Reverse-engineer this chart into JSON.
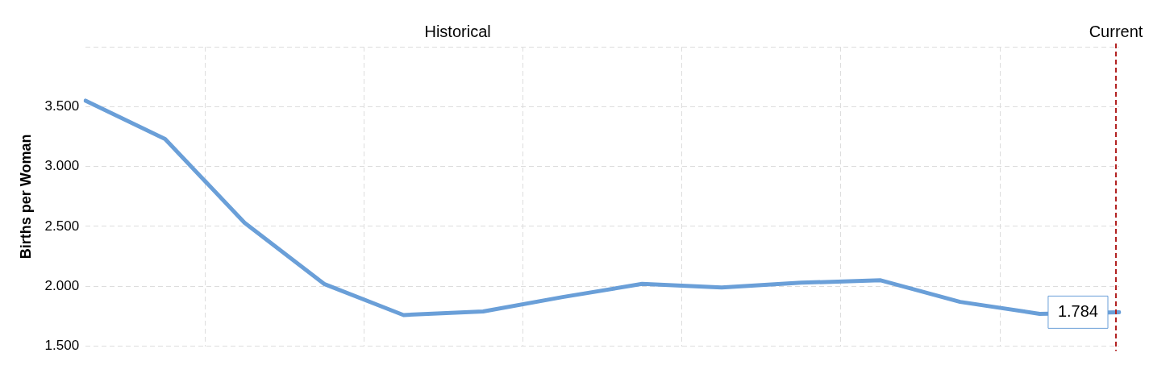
{
  "chart_data": {
    "type": "line",
    "ylabel": "Births per Woman",
    "annotations": [
      "Historical"
    ],
    "categories": [
      null,
      null,
      null,
      null,
      null,
      null,
      null,
      null,
      null,
      null,
      null,
      null,
      null,
      null
    ],
    "series": [
      {
        "color": "#6a9fd8",
        "values": [
          3.55,
          3.23,
          2.53,
          2.02,
          1.76,
          1.79,
          1.91,
          2.02,
          1.99,
          2.03,
          2.05,
          1.87,
          1.77,
          1.784
        ],
        "value_labels": [
          null,
          null,
          null,
          null,
          null,
          null,
          null,
          null,
          null,
          null,
          null,
          null,
          null,
          "1.784"
        ]
      }
    ],
    "ylim": [
      1.5,
      4
    ],
    "yticks": [
      {
        "value": 1.5,
        "label": "1.500"
      },
      {
        "value": 2,
        "label": "2.000"
      },
      {
        "value": 2.5,
        "label": "2.500"
      },
      {
        "value": 3,
        "label": "3.000"
      },
      {
        "value": 3.5,
        "label": "3.500"
      },
      {
        "value": 4,
        "label": null
      }
    ],
    "ref_lines": [
      {
        "axis": "x",
        "label": "Current",
        "color": "#b22222",
        "line_style": "dashed"
      }
    ],
    "grid": true,
    "legend": false,
    "marker": "none",
    "line_style": "solid"
  }
}
